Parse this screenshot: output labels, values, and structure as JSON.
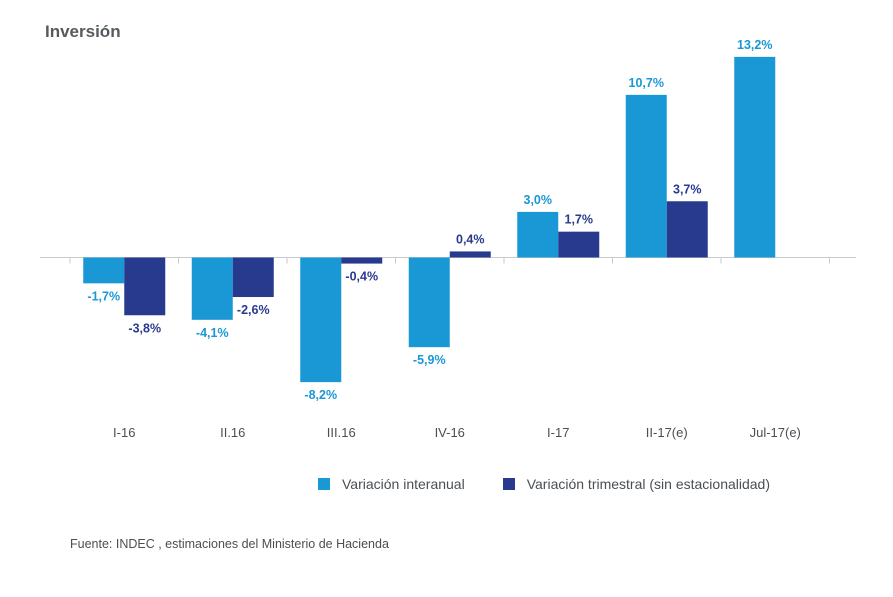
{
  "title": "Inversión",
  "source": "Fuente: INDEC , estimaciones del Ministerio de Hacienda",
  "chart_data": {
    "type": "bar",
    "title": "Inversión",
    "xlabel": "",
    "ylabel": "",
    "categories": [
      "I-16",
      "II.16",
      "III.16",
      "IV-16",
      "I-17",
      "II-17(e)",
      "Jul-17(e)"
    ],
    "series": [
      {
        "name": "Variación interanual",
        "color": "#1a97d5",
        "values": [
          -1.7,
          -4.1,
          -8.2,
          -5.9,
          3.0,
          10.7,
          13.2
        ],
        "labels": [
          "-1,7%",
          "-4,1%",
          "-8,2%",
          "-5,9%",
          "3,0%",
          "10,7%",
          "13,2%"
        ]
      },
      {
        "name": "Variación trimestral (sin estacionalidad)",
        "color": "#283a8e",
        "values": [
          -3.8,
          -2.6,
          -0.4,
          0.4,
          1.7,
          3.7,
          null
        ],
        "labels": [
          "-3,8%",
          "-2,6%",
          "-0,4%",
          "0,4%",
          "1,7%",
          "3,7%",
          ""
        ]
      }
    ],
    "ylim": [
      -8.2,
      13.2
    ],
    "grid": false,
    "legend": "bottom"
  }
}
